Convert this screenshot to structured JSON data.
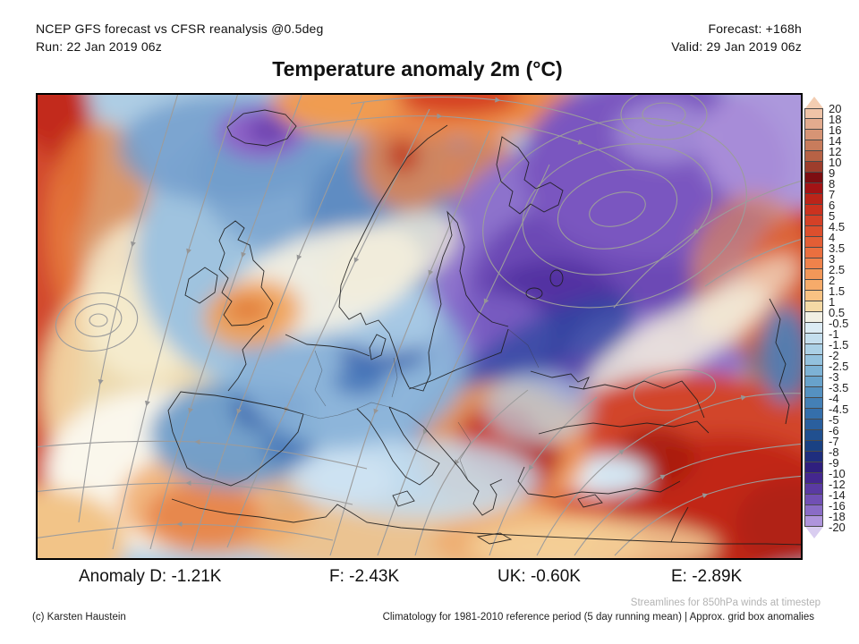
{
  "header": {
    "left_line1": "NCEP GFS forecast vs CFSR reanalysis @0.5deg",
    "left_line2": "Run: 22 Jan 2019 06z",
    "right_line1": "Forecast: +168h",
    "right_line2": "Valid: 29 Jan 2019 06z"
  },
  "title": "Temperature anomaly 2m (°C)",
  "map": {
    "type": "filled temperature-anomaly contour map with wind streamlines",
    "region": "Europe / North Atlantic",
    "overlay": "850hPa wind streamlines",
    "frame_color": "#000000",
    "base_color": "#AECDE4",
    "coastline_color": "#1C1C1C",
    "streamline_color": "#9C9C9C"
  },
  "colorbar": {
    "unit": "°C",
    "tick_labels": [
      "20",
      "18",
      "16",
      "14",
      "12",
      "10",
      "9",
      "8",
      "7",
      "6",
      "5",
      "4.5",
      "4",
      "3.5",
      "3",
      "2.5",
      "2",
      "1.5",
      "1",
      "0.5",
      "-0.5",
      "-1",
      "-1.5",
      "-2",
      "-2.5",
      "-3",
      "-3.5",
      "-4",
      "-4.5",
      "-5",
      "-6",
      "-7",
      "-8",
      "-9",
      "-10",
      "-12",
      "-14",
      "-16",
      "-18",
      "-20"
    ],
    "box_colors": [
      "#EFC3A7",
      "#E3AB8E",
      "#D69475",
      "#C87C5C",
      "#B76245",
      "#9E3D2C",
      "#7D0E12",
      "#A31315",
      "#BB2419",
      "#CB321F",
      "#D44127",
      "#DC4F2D",
      "#E35E35",
      "#EA6F3F",
      "#EF824B",
      "#F29758",
      "#F6AB6A",
      "#F8C283",
      "#F5D9A5",
      "#F1EFE4",
      "#DCEBF4",
      "#C4DEEE",
      "#ABD0E6",
      "#93C1DE",
      "#7DB2D5",
      "#68A2CB",
      "#5591C1",
      "#4480B6",
      "#356FAB",
      "#2A5F9E",
      "#215090",
      "#1A4183",
      "#1F2E7E",
      "#2F1F7E",
      "#44278F",
      "#5A3AA2",
      "#7150B4",
      "#8A6CC6",
      "#AF95DC"
    ],
    "arrow_top_color": "#F3CDB2",
    "arrow_bottom_color": "#D9CDF0"
  },
  "anomaly_summary": {
    "items": [
      "Anomaly D: -1.21K",
      "F: -2.43K",
      "UK: -0.60K",
      "E: -2.89K"
    ],
    "values": [
      {
        "region": "D",
        "value": "-1.21K"
      },
      {
        "region": "F",
        "value": "-2.43K"
      },
      {
        "region": "UK",
        "value": "-0.60K"
      },
      {
        "region": "E",
        "value": "-2.89K"
      }
    ]
  },
  "notes": {
    "streamlines": "Streamlines for 850hPa winds at timestep",
    "credit": "(c) Karsten Haustein",
    "climatology": "Climatology for 1981-2010 reference period (5 day running mean) | Approx. grid box anomalies"
  }
}
